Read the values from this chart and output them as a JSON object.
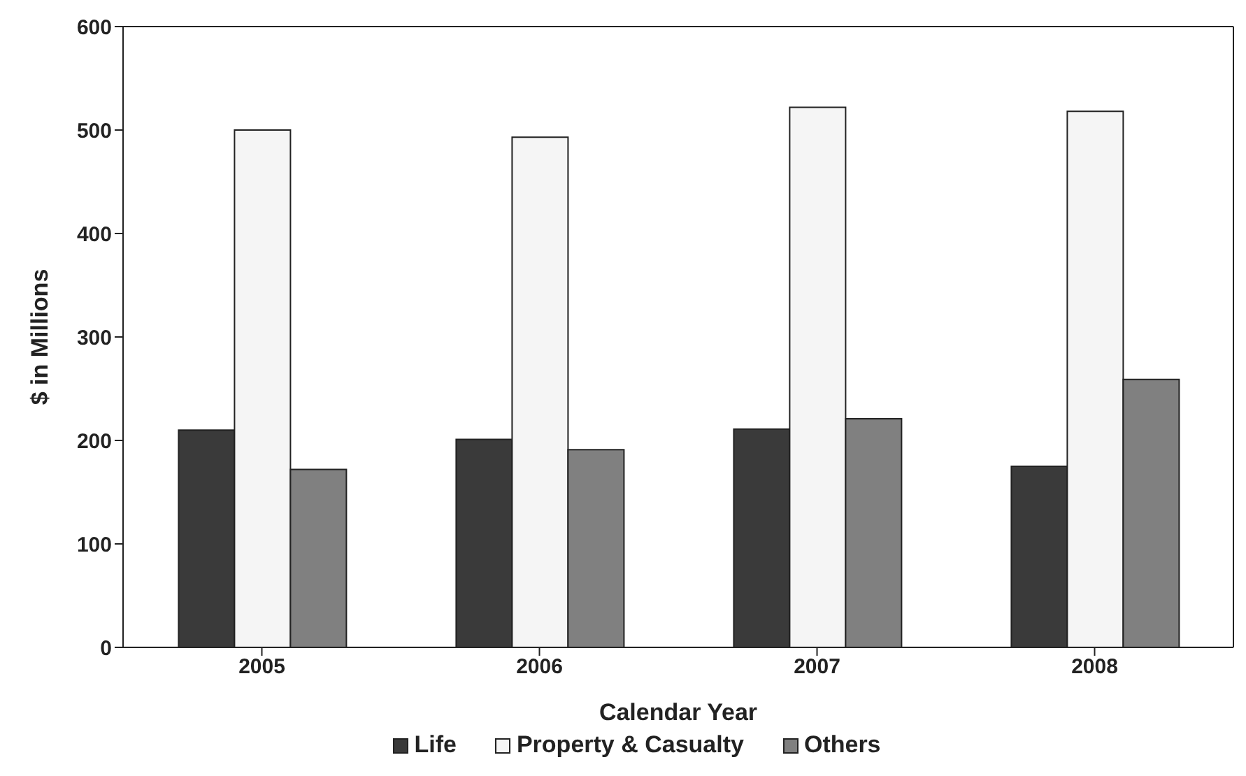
{
  "chart_data": {
    "type": "bar",
    "xlabel": "Calendar Year",
    "ylabel": "$ in Millions",
    "categories": [
      "2005",
      "2006",
      "2007",
      "2008"
    ],
    "series": [
      {
        "name": "Life",
        "color": "#3a3a3a",
        "values": [
          210,
          201,
          211,
          175
        ]
      },
      {
        "name": "Property & Casualty",
        "color": "#f5f5f5",
        "values": [
          500,
          493,
          522,
          518
        ]
      },
      {
        "name": "Others",
        "color": "#808080",
        "values": [
          172,
          191,
          221,
          259
        ]
      }
    ],
    "ylim": [
      0,
      600
    ],
    "yticks": [
      0,
      100,
      200,
      300,
      400,
      500,
      600
    ],
    "grid": false,
    "legend": "bottom"
  }
}
